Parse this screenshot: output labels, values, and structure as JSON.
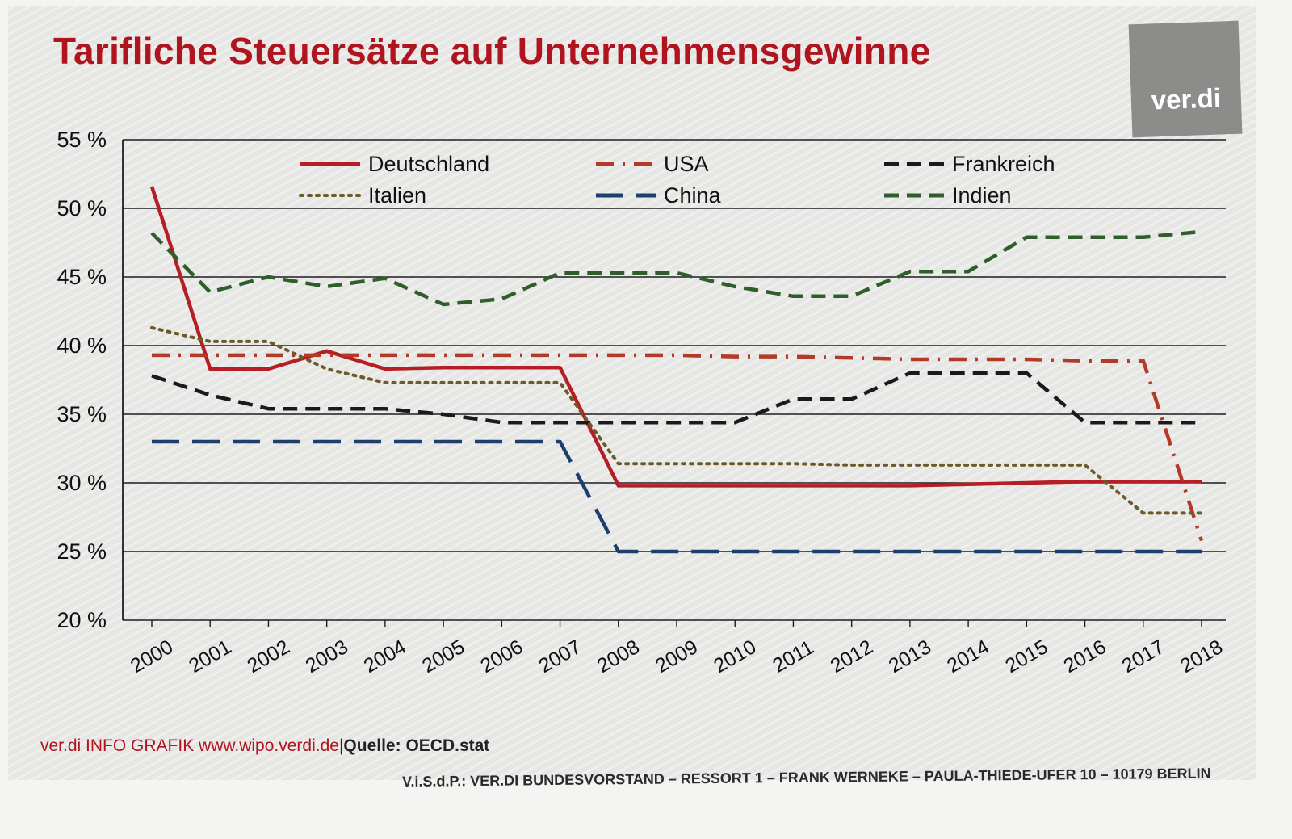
{
  "title": "Tarifliche Steuersätze auf Unternehmensgewinne",
  "logo": {
    "text": "ver.di"
  },
  "footer": {
    "credit": "ver.di INFO GRAFIK www.wipo.verdi.de",
    "separator": "|",
    "source": "Quelle: OECD.stat"
  },
  "imprint": "V.i.S.d.P.: VER.DI BUNDESVORSTAND – RESSORT 1 – FRANK WERNEKE – PAULA-THIEDE-UFER 10 – 10179 BERLIN",
  "colors": {
    "title": "#b0141e",
    "footer_credit": "#b0141e",
    "background": "#e6e6e4",
    "grid": "#1e1e1e"
  },
  "chart_data": {
    "type": "line",
    "title": "Tarifliche Steuersätze auf Unternehmensgewinne",
    "xlabel": "",
    "ylabel": "",
    "ylim": [
      20,
      55
    ],
    "yticks": [
      20,
      25,
      30,
      35,
      40,
      45,
      50,
      55
    ],
    "ytick_labels": [
      "20 %",
      "25 %",
      "30 %",
      "35 %",
      "40 %",
      "45 %",
      "50 %",
      "55 %"
    ],
    "grid": true,
    "legend_position": "top",
    "categories": [
      "2000",
      "2001",
      "2002",
      "2003",
      "2004",
      "2005",
      "2006",
      "2007",
      "2008",
      "2009",
      "2010",
      "2011",
      "2012",
      "2013",
      "2014",
      "2015",
      "2016",
      "2017",
      "2018"
    ],
    "series": [
      {
        "name": "Deutschland",
        "color": "#b51e24",
        "style": "solid",
        "values": [
          51.6,
          38.3,
          38.3,
          39.6,
          38.3,
          38.4,
          38.4,
          38.4,
          29.8,
          29.8,
          29.8,
          29.8,
          29.8,
          29.8,
          29.9,
          30.0,
          30.1,
          30.1,
          30.1
        ]
      },
      {
        "name": "USA",
        "color": "#b23a26",
        "style": "dashdot",
        "values": [
          39.3,
          39.3,
          39.3,
          39.3,
          39.3,
          39.3,
          39.3,
          39.3,
          39.3,
          39.3,
          39.2,
          39.2,
          39.1,
          39.0,
          39.0,
          39.0,
          38.9,
          38.9,
          25.8
        ]
      },
      {
        "name": "Frankreich",
        "color": "#1a1a1a",
        "style": "dash",
        "values": [
          37.8,
          36.4,
          35.4,
          35.4,
          35.4,
          35.0,
          34.4,
          34.4,
          34.4,
          34.4,
          34.4,
          36.1,
          36.1,
          38.0,
          38.0,
          38.0,
          34.4,
          34.4,
          34.4
        ]
      },
      {
        "name": "Italien",
        "color": "#6b5a2a",
        "style": "dot",
        "values": [
          41.3,
          40.3,
          40.3,
          38.3,
          37.3,
          37.3,
          37.3,
          37.3,
          31.4,
          31.4,
          31.4,
          31.4,
          31.3,
          31.3,
          31.3,
          31.3,
          31.3,
          27.8,
          27.8
        ]
      },
      {
        "name": "China",
        "color": "#1d3f6e",
        "style": "longdash",
        "values": [
          33.0,
          33.0,
          33.0,
          33.0,
          33.0,
          33.0,
          33.0,
          33.0,
          25.0,
          25.0,
          25.0,
          25.0,
          25.0,
          25.0,
          25.0,
          25.0,
          25.0,
          25.0,
          25.0
        ]
      },
      {
        "name": "Indien",
        "color": "#2f5e2c",
        "style": "dash",
        "values": [
          48.2,
          43.9,
          45.0,
          44.3,
          44.9,
          43.0,
          43.4,
          45.3,
          45.3,
          45.3,
          44.3,
          43.6,
          43.6,
          45.4,
          45.4,
          47.9,
          47.9,
          47.9,
          48.3
        ]
      }
    ]
  }
}
